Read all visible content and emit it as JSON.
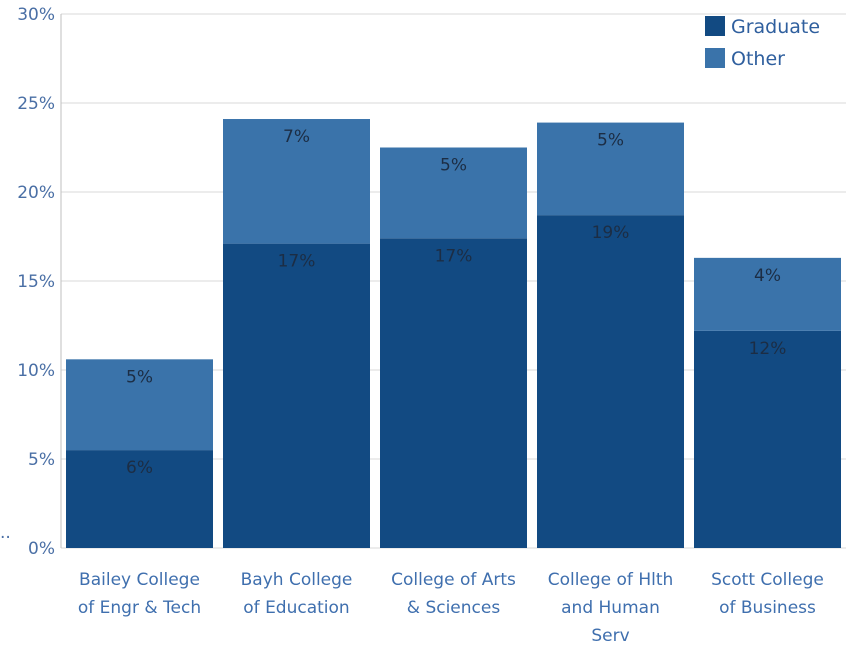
{
  "chart_data": {
    "type": "bar",
    "stacked": true,
    "categories": [
      [
        "Bailey College",
        "of Engr & Tech"
      ],
      [
        "Bayh College",
        "of Education"
      ],
      [
        "College of Arts",
        "& Sciences"
      ],
      [
        "College of Hlth",
        "and Human",
        "Serv"
      ],
      [
        "Scott College",
        "of Business"
      ]
    ],
    "series": [
      {
        "name": "Graduate",
        "color": "#124a82",
        "values": [
          5.5,
          17.1,
          17.4,
          18.7,
          12.2
        ],
        "labels": [
          "6%",
          "17%",
          "17%",
          "19%",
          "12%"
        ]
      },
      {
        "name": "Other",
        "color": "#3a73aa",
        "values": [
          5.1,
          7.0,
          5.1,
          5.2,
          4.1
        ],
        "labels": [
          "5%",
          "7%",
          "5%",
          "5%",
          "4%"
        ]
      }
    ],
    "ylim": [
      0,
      30
    ],
    "yticks": [
      0,
      5,
      10,
      15,
      20,
      25,
      30
    ],
    "ytick_labels": [
      "0%",
      "5%",
      "10%",
      "15%",
      "20%",
      "25%",
      "30%"
    ],
    "grid": true,
    "legend": "top-right",
    "xlabel": "",
    "ylabel": ""
  }
}
